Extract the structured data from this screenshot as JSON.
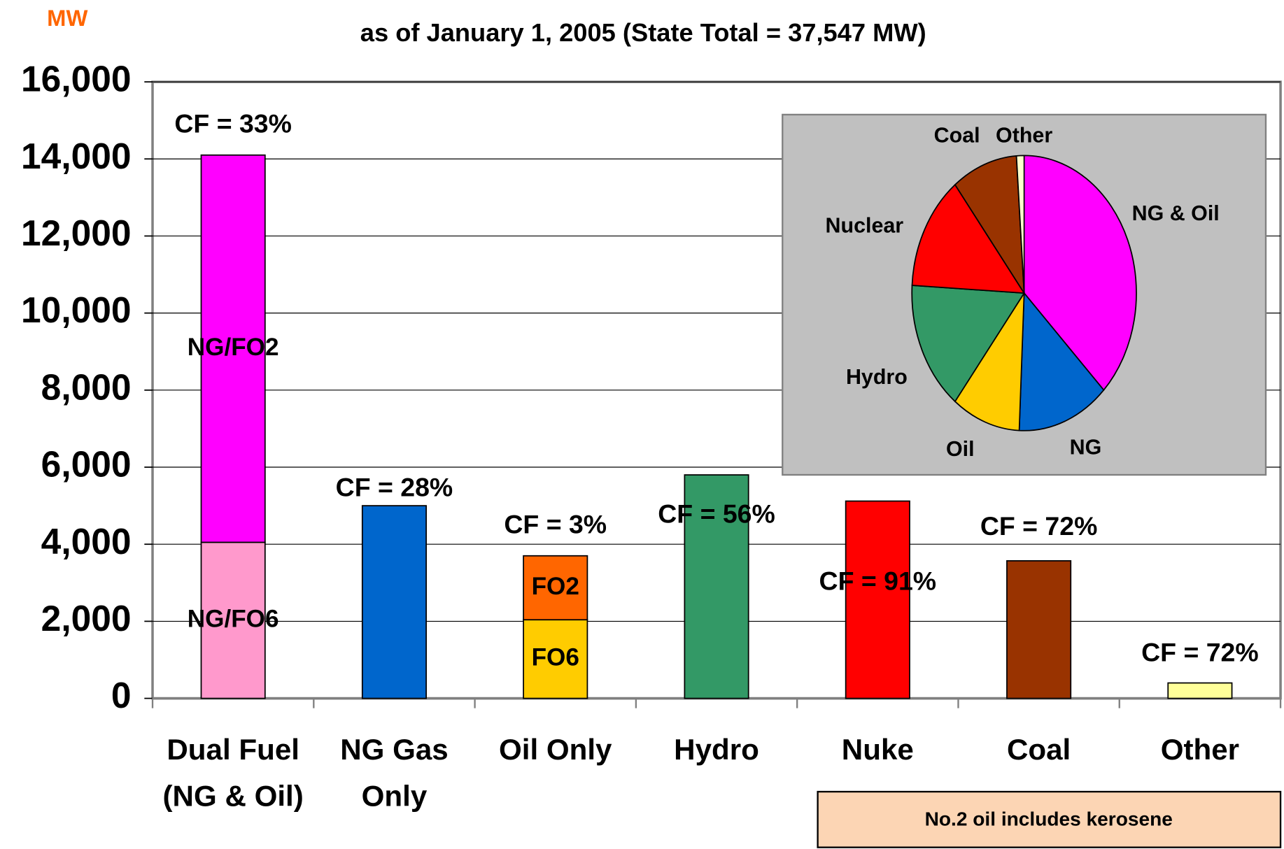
{
  "chart_data": {
    "type": "bar",
    "subtitle": "as of January 1, 2005 (State Total = 37,547 MW)",
    "y_label": "MW",
    "ylim": [
      0,
      16000
    ],
    "yticks": [
      0,
      {
        "value": 2000,
        "label": "2,000"
      },
      {
        "value": 4000,
        "label": "4,000"
      },
      {
        "value": 6000,
        "label": "6,000"
      },
      {
        "value": 8000,
        "label": "8,000"
      },
      {
        "value": 10000,
        "label": "10,000"
      },
      {
        "value": 12000,
        "label": "12,000"
      },
      {
        "value": 14000,
        "label": "14,000"
      },
      {
        "value": 16000,
        "label": "16,000"
      }
    ],
    "grid": true,
    "bars": [
      {
        "category": [
          "Dual Fuel",
          "(NG & Oil)"
        ],
        "cf_label": "CF = 33%",
        "segments": [
          {
            "label": "NG/FO6",
            "value": 4050,
            "color": "#ff99cc"
          },
          {
            "label": "NG/FO2",
            "value": 10050,
            "color": "#ff00ff"
          }
        ]
      },
      {
        "category": [
          "NG Gas",
          "Only"
        ],
        "cf_label": "CF = 28%",
        "segments": [
          {
            "value": 5000,
            "color": "#0066cc"
          }
        ]
      },
      {
        "category": [
          "Oil Only"
        ],
        "cf_label": "CF = 3%",
        "segments": [
          {
            "label": "FO6",
            "value": 2040,
            "color": "#ffcc00"
          },
          {
            "label": "FO2",
            "value": 1660,
            "color": "#ff6600"
          }
        ]
      },
      {
        "category": [
          "Hydro"
        ],
        "cf_label": "CF = 56%",
        "segments": [
          {
            "value": 5800,
            "color": "#339966"
          }
        ]
      },
      {
        "category": [
          "Nuke"
        ],
        "cf_label": "CF = 91%",
        "segments": [
          {
            "value": 5120,
            "color": "#ff0000"
          }
        ]
      },
      {
        "category": [
          "Coal"
        ],
        "cf_label": "CF = 72%",
        "segments": [
          {
            "value": 3570,
            "color": "#993300"
          }
        ]
      },
      {
        "category": [
          "Other"
        ],
        "cf_label": "CF = 72%",
        "segments": [
          {
            "value": 400,
            "color": "#ffff99"
          }
        ]
      }
    ],
    "inset": {
      "type": "pie",
      "categories": [
        "NG & Oil",
        "NG",
        "Oil",
        "Hydro",
        "Nuclear",
        "Coal",
        "Other"
      ],
      "values": [
        37.6,
        13.3,
        9.9,
        15.4,
        13.6,
        9.5,
        1.1
      ],
      "colors": [
        "#ff00ff",
        "#0066cc",
        "#ffcc00",
        "#339966",
        "#ff0000",
        "#993300",
        "#ffffcc"
      ]
    },
    "note": "No.2 oil includes kerosene"
  }
}
